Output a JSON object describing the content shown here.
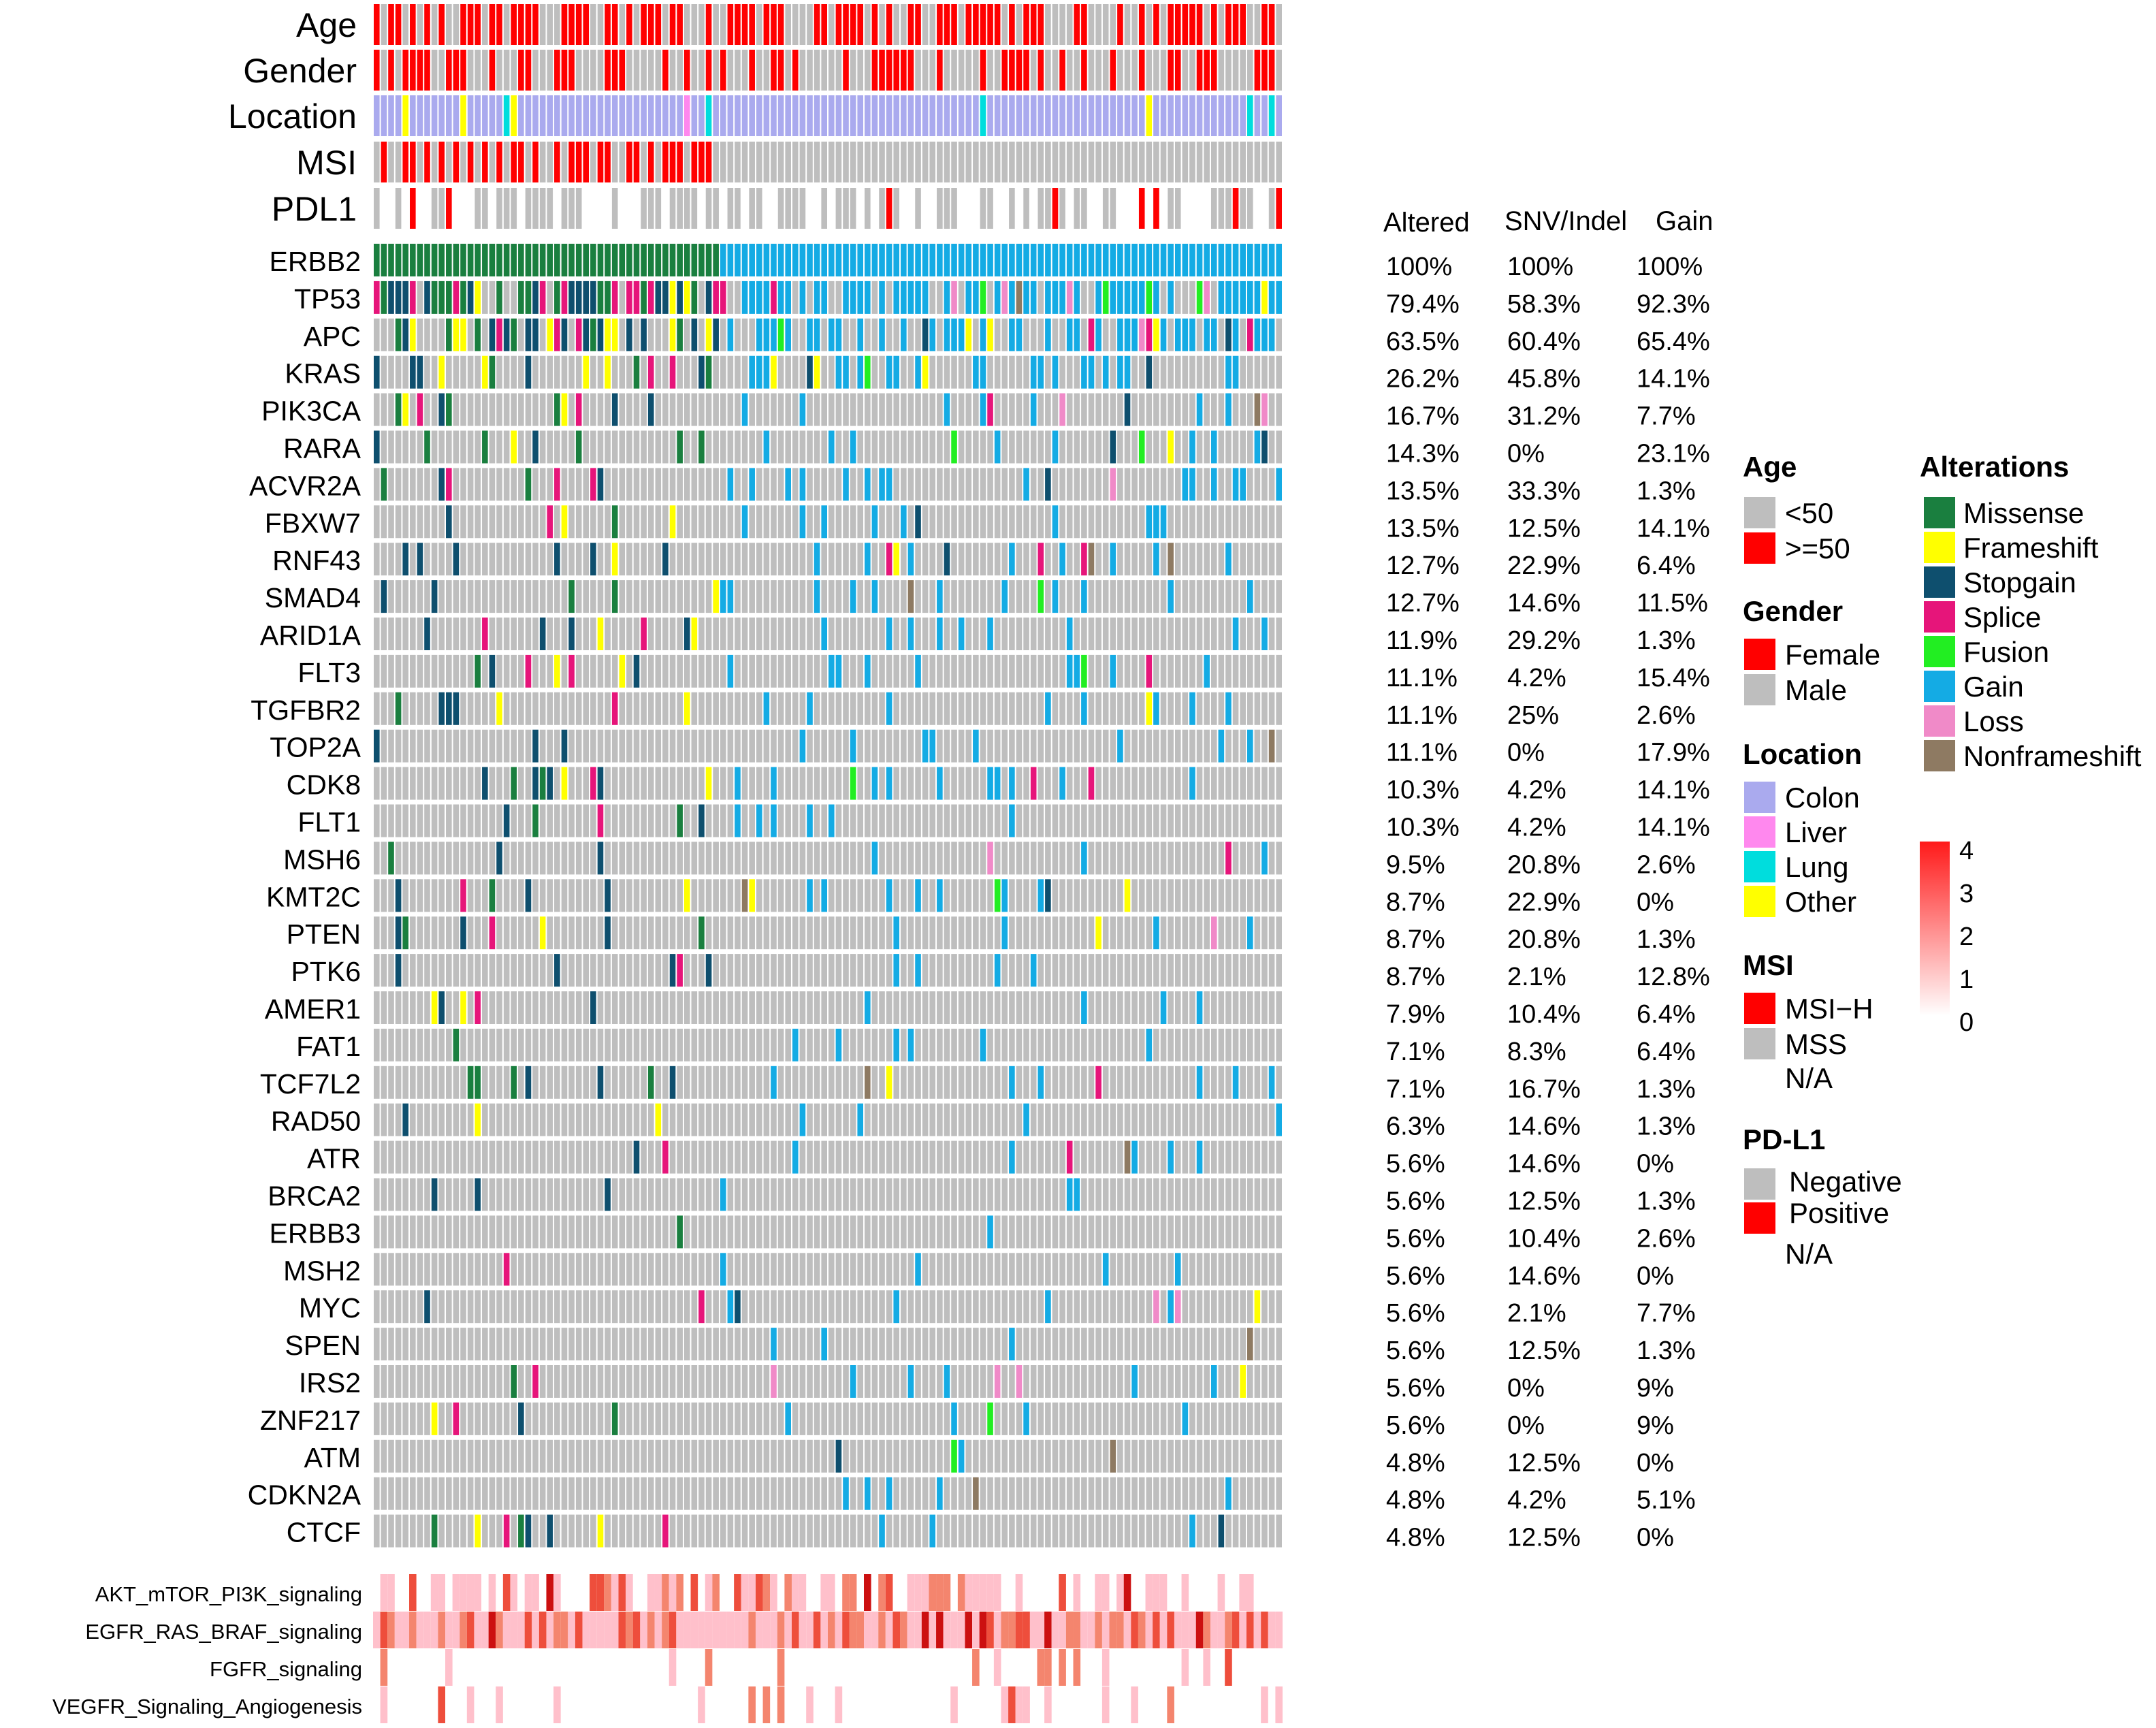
{
  "colors": {
    "grey": "#BEBEBE",
    "red": "#FF0000",
    "colon": "#AAAAEE",
    "liver": "#FF88EE",
    "lung": "#00DDDD",
    "other": "#FFFF00",
    "missense": "#1A7F3F",
    "frameshift": "#FFFF00",
    "stopgain": "#0E4F6E",
    "splice": "#E6157A",
    "fusion": "#22EE22",
    "gain": "#14ABE4",
    "loss": "#F08AC8",
    "nonframeshift": "#8E7A62",
    "scale_low": "#FFFFFF",
    "scale_high": "#FF1A1A"
  },
  "chart_data": {
    "type": "heatmap",
    "title": "",
    "n_samples": 126,
    "annotation_tracks": [
      "Age",
      "Gender",
      "Location",
      "MSI",
      "PDL1"
    ],
    "genes": [
      "ERBB2",
      "TP53",
      "APC",
      "KRAS",
      "PIK3CA",
      "RARA",
      "ACVR2A",
      "FBXW7",
      "RNF43",
      "SMAD4",
      "ARID1A",
      "FLT3",
      "TGFBR2",
      "TOP2A",
      "CDK8",
      "FLT1",
      "MSH6",
      "KMT2C",
      "PTEN",
      "PTK6",
      "AMER1",
      "FAT1",
      "TCF7L2",
      "RAD50",
      "ATR",
      "BRCA2",
      "ERBB3",
      "MSH2",
      "MYC",
      "SPEN",
      "IRS2",
      "ZNF217",
      "ATM",
      "CDKN2A",
      "CTCF"
    ],
    "column_headers": [
      "Altered",
      "SNV/Indel",
      "Gain"
    ],
    "frequencies": [
      [
        "100%",
        "100%",
        "100%"
      ],
      [
        "79.4%",
        "58.3%",
        "92.3%"
      ],
      [
        "63.5%",
        "60.4%",
        "65.4%"
      ],
      [
        "26.2%",
        "45.8%",
        "14.1%"
      ],
      [
        "16.7%",
        "31.2%",
        "7.7%"
      ],
      [
        "14.3%",
        "0%",
        "23.1%"
      ],
      [
        "13.5%",
        "33.3%",
        "1.3%"
      ],
      [
        "13.5%",
        "12.5%",
        "14.1%"
      ],
      [
        "12.7%",
        "22.9%",
        "6.4%"
      ],
      [
        "12.7%",
        "14.6%",
        "11.5%"
      ],
      [
        "11.9%",
        "29.2%",
        "1.3%"
      ],
      [
        "11.1%",
        "4.2%",
        "15.4%"
      ],
      [
        "11.1%",
        "25%",
        "2.6%"
      ],
      [
        "11.1%",
        "0%",
        "17.9%"
      ],
      [
        "10.3%",
        "4.2%",
        "14.1%"
      ],
      [
        "10.3%",
        "4.2%",
        "14.1%"
      ],
      [
        "9.5%",
        "20.8%",
        "2.6%"
      ],
      [
        "8.7%",
        "22.9%",
        "0%"
      ],
      [
        "8.7%",
        "20.8%",
        "1.3%"
      ],
      [
        "8.7%",
        "2.1%",
        "12.8%"
      ],
      [
        "7.9%",
        "10.4%",
        "6.4%"
      ],
      [
        "7.1%",
        "8.3%",
        "6.4%"
      ],
      [
        "7.1%",
        "16.7%",
        "1.3%"
      ],
      [
        "6.3%",
        "14.6%",
        "1.3%"
      ],
      [
        "5.6%",
        "14.6%",
        "0%"
      ],
      [
        "5.6%",
        "12.5%",
        "1.3%"
      ],
      [
        "5.6%",
        "10.4%",
        "2.6%"
      ],
      [
        "5.6%",
        "14.6%",
        "0%"
      ],
      [
        "5.6%",
        "2.1%",
        "7.7%"
      ],
      [
        "5.6%",
        "12.5%",
        "1.3%"
      ],
      [
        "5.6%",
        "0%",
        "9%"
      ],
      [
        "5.6%",
        "0%",
        "9%"
      ],
      [
        "4.8%",
        "12.5%",
        "0%"
      ],
      [
        "4.8%",
        "4.2%",
        "5.1%"
      ],
      [
        "4.8%",
        "12.5%",
        "0%"
      ]
    ],
    "pathways": [
      "AKT_mTOR_PI3K_signaling",
      "EGFR_RAS_BRAF_signaling",
      "FGFR_signaling",
      "VEGFR_Signaling_Angiogenesis"
    ],
    "pathway_scale": {
      "min": 0,
      "max": 4,
      "ticks": [
        "4",
        "3",
        "2",
        "1",
        "0"
      ]
    },
    "legend": {
      "age": {
        "title": "Age",
        "items": [
          "<50",
          ">=50"
        ]
      },
      "gender": {
        "title": "Gender",
        "items": [
          "Female",
          "Male"
        ]
      },
      "location": {
        "title": "Location",
        "items": [
          "Colon",
          "Liver",
          "Lung",
          "Other"
        ]
      },
      "msi": {
        "title": "MSI",
        "items": [
          "MSI−H",
          "MSS",
          "N/A"
        ]
      },
      "pdl1": {
        "title": "PD-L1",
        "items": [
          "Negative",
          "Positive",
          "N/A"
        ]
      },
      "alterations": {
        "title": "Alterations",
        "items": [
          "Missense",
          "Frameshift",
          "Stopgain",
          "Splice",
          "Fusion",
          "Gain",
          "Loss",
          "Nonframeshift"
        ]
      }
    }
  }
}
